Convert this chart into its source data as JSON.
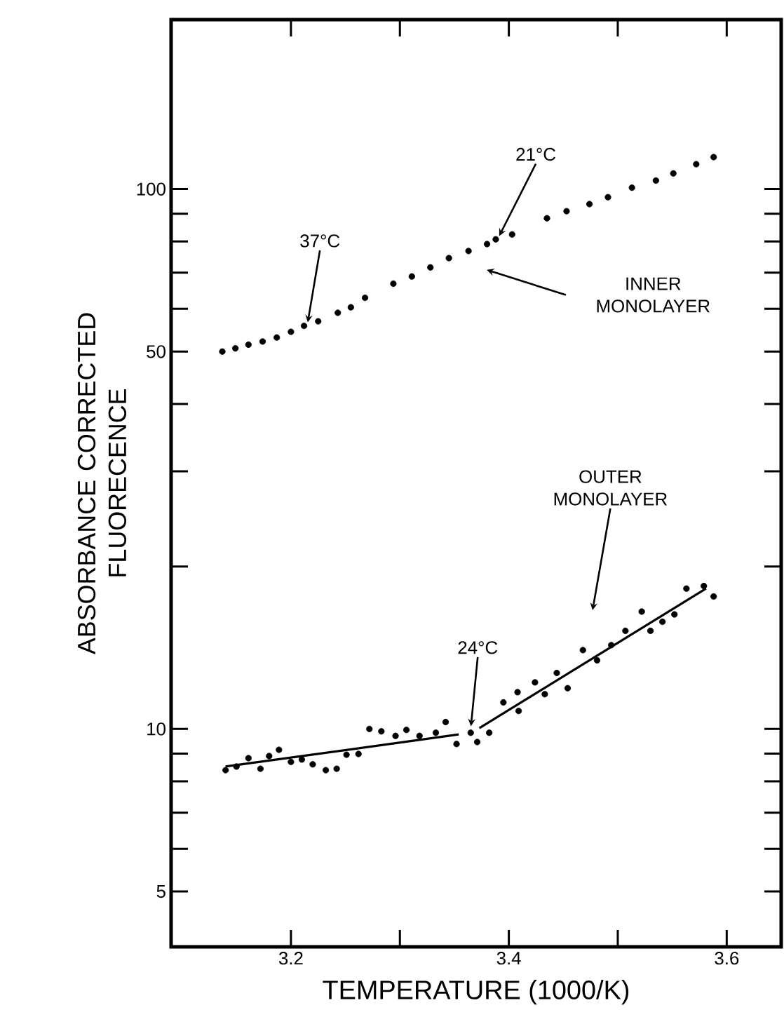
{
  "chart_data": {
    "type": "scatter",
    "xlabel": "TEMPERATURE (1000/K)",
    "ylabel": "ABSORBANCE CORRECTED FLUORECENCE",
    "log": "y",
    "line_style": "solid",
    "xlim": [
      3.09,
      3.65
    ],
    "ylim": [
      3.95,
      206
    ],
    "xticks": [
      3.2,
      {
        "value": 3.3,
        "label": null
      },
      3.4,
      {
        "value": 3.5,
        "label": null
      },
      3.6
    ],
    "yticks": [
      5,
      {
        "value": 6,
        "label": null
      },
      {
        "value": 7,
        "label": null
      },
      {
        "value": 8,
        "label": null
      },
      {
        "value": 9,
        "label": null
      },
      10,
      {
        "value": 20,
        "label": null
      },
      {
        "value": 30,
        "label": null
      },
      {
        "value": 40,
        "label": null
      },
      50,
      {
        "value": 60,
        "label": null
      },
      {
        "value": 70,
        "label": null
      },
      {
        "value": 80,
        "label": null
      },
      {
        "value": 90,
        "label": null
      },
      100
    ],
    "series": [
      {
        "marker": "circle",
        "color": "#000000",
        "x": [
          3.137,
          3.149,
          3.161,
          3.174,
          3.187,
          3.2,
          3.212,
          3.225,
          3.243,
          3.255,
          3.268,
          3.294,
          3.311,
          3.328,
          3.345,
          3.363,
          3.38,
          3.388,
          3.403,
          3.435,
          3.453,
          3.474,
          3.491,
          3.513,
          3.535,
          3.551,
          3.572,
          3.588
        ],
        "values": [
          50.0,
          50.7,
          51.5,
          52.2,
          53.1,
          54.4,
          55.8,
          56.9,
          59.0,
          60.4,
          62.9,
          66.8,
          68.9,
          71.6,
          74.5,
          76.8,
          79.1,
          80.7,
          82.4,
          88.3,
          91.0,
          93.8,
          96.6,
          100.6,
          103.7,
          106.9,
          111.2,
          114.6
        ]
      },
      {
        "marker": "circle",
        "color": "#000000",
        "x": [
          3.14,
          3.15,
          3.161,
          3.172,
          3.18,
          3.189,
          3.2,
          3.21,
          3.22,
          3.232,
          3.242,
          3.251,
          3.262,
          3.272,
          3.283,
          3.296,
          3.306,
          3.318,
          3.333,
          3.342,
          3.352,
          3.365,
          3.371,
          3.382,
          3.395,
          3.409,
          3.408,
          3.424,
          3.433,
          3.444,
          3.454,
          3.468,
          3.481,
          3.494,
          3.507,
          3.522,
          3.53,
          3.541,
          3.552,
          3.563,
          3.579,
          3.588
        ],
        "values": [
          8.39,
          8.52,
          8.83,
          8.44,
          8.91,
          9.15,
          8.69,
          8.78,
          8.6,
          8.39,
          8.44,
          8.96,
          8.99,
          10.0,
          9.9,
          9.71,
          9.96,
          9.71,
          9.84,
          10.3,
          9.38,
          9.84,
          9.46,
          9.84,
          11.2,
          10.8,
          11.7,
          12.2,
          11.6,
          12.7,
          11.9,
          14.0,
          13.4,
          14.3,
          15.2,
          16.5,
          15.2,
          15.8,
          16.3,
          18.2,
          18.4,
          17.6
        ]
      },
      {
        "type": "line",
        "marker": "none",
        "color": "#000000",
        "x": [
          3.14,
          3.354
        ],
        "values": [
          8.52,
          9.77
        ]
      },
      {
        "type": "line",
        "marker": "none",
        "color": "#000000",
        "x": [
          3.373,
          3.581
        ],
        "values": [
          10.04,
          18.2
        ]
      }
    ],
    "annotations": [
      {
        "text": "37°C",
        "x": 3.215,
        "y": 56
      },
      {
        "text": "21°C",
        "x": 3.39,
        "y": 81
      },
      "INNER MONOLAYER",
      {
        "text": "24°C",
        "x": 3.365,
        "y": 10
      },
      "OUTER MONOLAYER"
    ]
  }
}
